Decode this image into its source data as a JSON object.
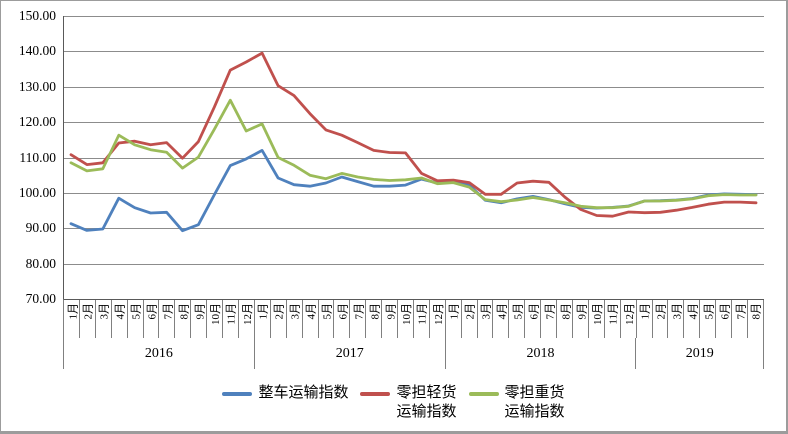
{
  "chart_data": {
    "type": "line",
    "title": "",
    "y_axis": {
      "min": 70,
      "max": 150,
      "step": 10,
      "grid": true,
      "tick_labels": [
        "150.00",
        "140.00",
        "130.00",
        "120.00",
        "110.00",
        "100.00",
        "90.00",
        "80.00",
        "70.00"
      ]
    },
    "x_axis": {
      "month_labels": [
        "1月",
        "2月",
        "3月",
        "4月",
        "5月",
        "6月",
        "7月",
        "8月",
        "9月",
        "10月",
        "11月",
        "12月",
        "1月",
        "2月",
        "3月",
        "4月",
        "5月",
        "6月",
        "7月",
        "8月",
        "9月",
        "10月",
        "11月",
        "12月",
        "1月",
        "2月",
        "3月",
        "4月",
        "5月",
        "6月",
        "7月",
        "8月",
        "9月",
        "10月",
        "11月",
        "12月",
        "1月",
        "2月",
        "3月",
        "4月",
        "5月",
        "6月",
        "7月",
        "8月"
      ],
      "year_groups": [
        {
          "label": "2016",
          "months": 12
        },
        {
          "label": "2017",
          "months": 12
        },
        {
          "label": "2018",
          "months": 12
        },
        {
          "label": "2019",
          "months": 8
        }
      ]
    },
    "series": [
      {
        "name": "整车运输指数",
        "color": "#4F81BD",
        "values": [
          91.3,
          89.4,
          89.8,
          98.5,
          95.8,
          94.3,
          94.5,
          89.3,
          91.0,
          99.5,
          107.7,
          109.6,
          112.0,
          104.2,
          102.3,
          101.9,
          102.8,
          104.5,
          103.2,
          101.9,
          101.9,
          102.2,
          103.9,
          102.8,
          103.4,
          102.2,
          97.9,
          97.2,
          98.3,
          99.0,
          98.1,
          96.9,
          95.9,
          95.7,
          95.9,
          96.3,
          97.7,
          97.8,
          98.0,
          98.4,
          99.4,
          99.7,
          99.6,
          99.5
        ]
      },
      {
        "name": "零担轻货运输指数",
        "color": "#C0504D",
        "values": [
          110.8,
          108.0,
          108.5,
          114.1,
          114.6,
          113.6,
          114.2,
          109.8,
          114.5,
          124.3,
          134.7,
          137.0,
          139.5,
          130.3,
          127.5,
          122.4,
          117.8,
          116.3,
          114.2,
          112.0,
          111.4,
          111.3,
          105.5,
          103.4,
          103.6,
          102.9,
          99.6,
          99.6,
          102.8,
          103.3,
          103.0,
          98.8,
          95.3,
          93.6,
          93.4,
          94.6,
          94.4,
          94.5,
          95.1,
          95.9,
          96.8,
          97.4,
          97.4,
          97.2
        ]
      },
      {
        "name": "零担重货运输指数",
        "color": "#9BBB59",
        "values": [
          108.5,
          106.2,
          106.8,
          116.3,
          113.6,
          112.2,
          111.5,
          107.0,
          110.1,
          118.0,
          126.2,
          117.5,
          119.5,
          110.0,
          107.8,
          105.0,
          104.0,
          105.5,
          104.5,
          103.8,
          103.5,
          103.7,
          104.2,
          102.6,
          102.9,
          101.6,
          98.1,
          97.5,
          98.0,
          98.7,
          98.0,
          97.2,
          96.2,
          95.8,
          95.8,
          96.2,
          97.7,
          97.7,
          97.9,
          98.3,
          99.2,
          99.5,
          99.4,
          99.4
        ]
      }
    ],
    "legend": {
      "position": "bottom",
      "items": [
        {
          "lines": [
            "整车运输指数",
            ""
          ],
          "color": "#4F81BD"
        },
        {
          "lines": [
            "零担轻货",
            "运输指数"
          ],
          "color": "#C0504D"
        },
        {
          "lines": [
            "零担重货",
            "运输指数"
          ],
          "color": "#9BBB59"
        }
      ]
    },
    "colors": {
      "gridline": "#8C8C8C",
      "axis": "#595959",
      "background": "#FFFFFF",
      "border": "#9C9C9C"
    }
  }
}
